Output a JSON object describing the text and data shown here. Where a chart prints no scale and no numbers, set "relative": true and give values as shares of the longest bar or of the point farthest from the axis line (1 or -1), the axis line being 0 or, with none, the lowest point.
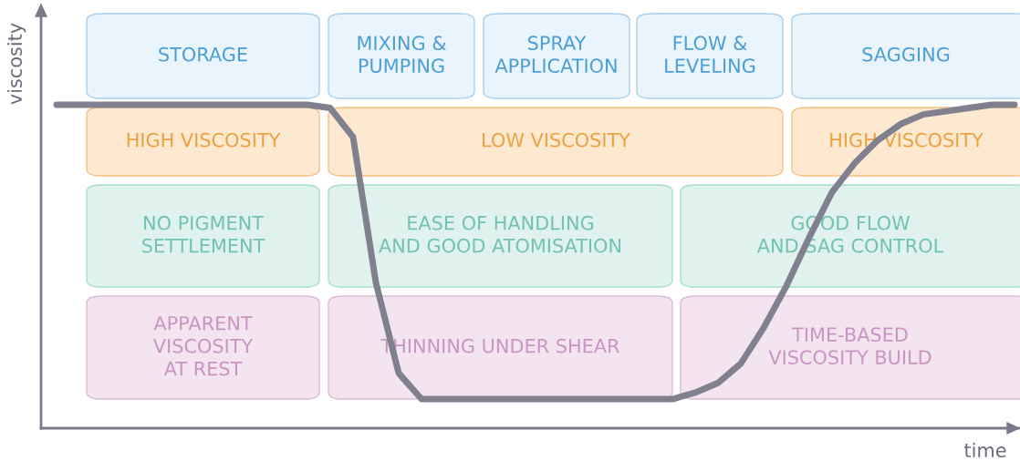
{
  "chart_data": {
    "type": "line",
    "relative": true,
    "xlabel": "time",
    "ylabel": "viscosity",
    "categories": [
      null,
      null,
      null,
      null,
      null,
      null,
      null,
      null,
      null,
      null,
      null,
      null,
      null,
      null,
      null,
      null,
      null,
      null,
      null,
      null,
      null,
      null,
      null,
      null,
      null,
      null,
      null,
      null,
      null,
      null,
      null,
      null,
      null,
      null,
      null,
      null,
      null,
      null,
      null,
      null,
      null,
      null,
      null
    ],
    "series": [
      {
        "color": "#80808f",
        "values": [
          1.0,
          1.0,
          1.0,
          1.0,
          1.0,
          1.0,
          1.0,
          1.0,
          1.0,
          1.0,
          1.0,
          1.0,
          0.99,
          0.9,
          0.45,
          0.17,
          0.09,
          0.09,
          0.09,
          0.09,
          0.09,
          0.09,
          0.09,
          0.09,
          0.09,
          0.09,
          0.09,
          0.09,
          0.11,
          0.14,
          0.2,
          0.31,
          0.44,
          0.59,
          0.73,
          0.82,
          0.89,
          0.94,
          0.97,
          0.98,
          0.99,
          1.0,
          1.0
        ]
      }
    ],
    "marker": "none",
    "line_style": "solid",
    "grid": false,
    "legend": false,
    "annotations": [
      "STORAGE",
      "MIXING &\nPUMPING",
      "SPRAY\nAPPLICATION",
      "FLOW &\nLEVELING",
      "SAGGING",
      "HIGH VISCOSITY",
      "LOW VISCOSITY",
      "HIGH VISCOSITY",
      "NO PIGMENT\nSETTLEMENT",
      "EASE OF HANDLING\nAND GOOD ATOMISATION",
      "GOOD FLOW\nAND SAG CONTROL",
      "APPARENT\nVISCOSITY\nAT REST",
      "THINNING UNDER SHEAR",
      "TIME-BASED\nVISCOSITY BUILD"
    ]
  }
}
